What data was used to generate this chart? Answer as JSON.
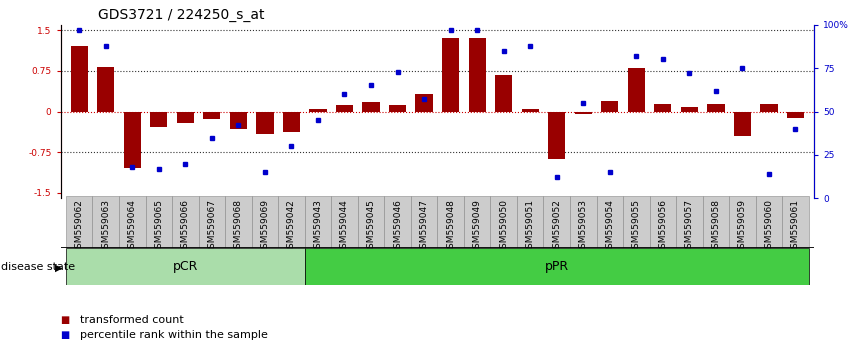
{
  "title": "GDS3721 / 224250_s_at",
  "samples": [
    "GSM559062",
    "GSM559063",
    "GSM559064",
    "GSM559065",
    "GSM559066",
    "GSM559067",
    "GSM559068",
    "GSM559069",
    "GSM559042",
    "GSM559043",
    "GSM559044",
    "GSM559045",
    "GSM559046",
    "GSM559047",
    "GSM559048",
    "GSM559049",
    "GSM559050",
    "GSM559051",
    "GSM559052",
    "GSM559053",
    "GSM559054",
    "GSM559055",
    "GSM559056",
    "GSM559057",
    "GSM559058",
    "GSM559059",
    "GSM559060",
    "GSM559061"
  ],
  "bar_values": [
    1.2,
    0.83,
    -1.05,
    -0.28,
    -0.22,
    -0.13,
    -0.32,
    -0.42,
    -0.38,
    0.04,
    0.12,
    0.18,
    0.12,
    0.32,
    1.35,
    1.35,
    0.68,
    0.04,
    -0.88,
    -0.04,
    0.2,
    0.8,
    0.13,
    0.08,
    0.13,
    -0.45,
    0.13,
    -0.12
  ],
  "dot_values": [
    97,
    88,
    18,
    17,
    20,
    35,
    42,
    15,
    30,
    45,
    60,
    65,
    73,
    57,
    97,
    97,
    85,
    88,
    12,
    55,
    15,
    82,
    80,
    72,
    62,
    75,
    14,
    40
  ],
  "pCR_count": 9,
  "pPR_count": 19,
  "bar_color": "#990000",
  "dot_color": "#0000CC",
  "ylim_left": [
    -1.6,
    1.6
  ],
  "y_left_ticks": [
    -1.5,
    -0.75,
    0,
    0.75,
    1.5
  ],
  "y_right_ticks": [
    0,
    25,
    50,
    75,
    100
  ],
  "background_color": "#ffffff",
  "pCR_color": "#aaddaa",
  "pPR_color": "#44cc44",
  "disease_state_label": "disease state",
  "legend_bar_label": "transformed count",
  "legend_dot_label": "percentile rank within the sample",
  "title_fontsize": 10,
  "tick_fontsize": 6.5,
  "label_fontsize": 8,
  "group_label_fontsize": 9
}
